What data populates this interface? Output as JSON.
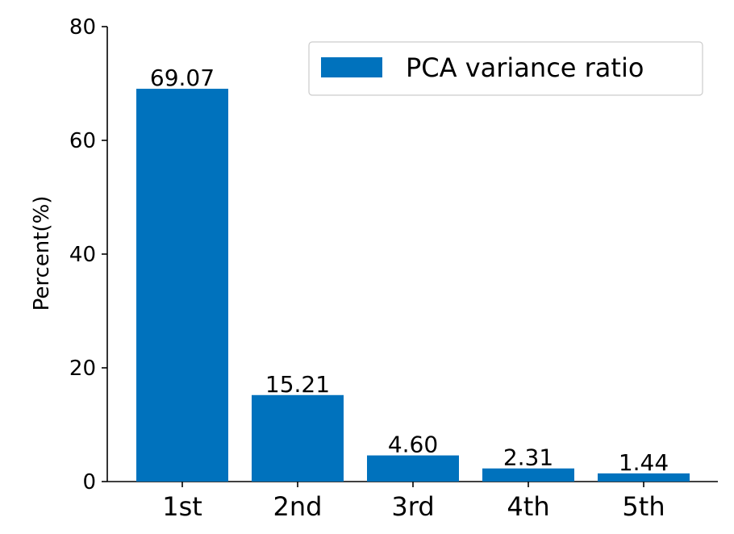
{
  "chart_data": {
    "type": "bar",
    "categories": [
      "1st",
      "2nd",
      "3rd",
      "4th",
      "5th"
    ],
    "series": [
      {
        "name": "PCA variance ratio",
        "values": [
          69.07,
          15.21,
          4.6,
          2.31,
          1.44
        ],
        "color": "#0072bd"
      }
    ],
    "value_labels": [
      "69.07",
      "15.21",
      "4.60",
      "2.31",
      "1.44"
    ],
    "ylabel": "Percent(%)",
    "xlabel": "",
    "ylim": [
      0,
      80
    ],
    "yticks": [
      0,
      20,
      40,
      60,
      80
    ],
    "grid": false,
    "legend_position": "top-right"
  }
}
